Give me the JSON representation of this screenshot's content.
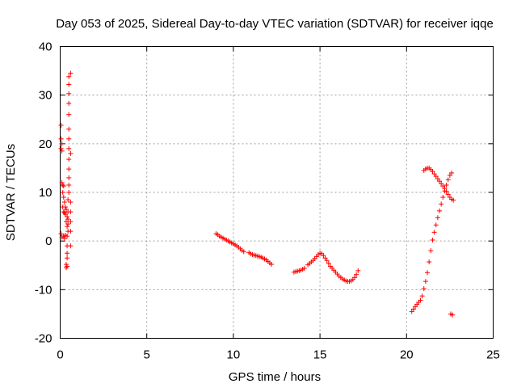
{
  "chart_data": {
    "type": "scatter",
    "title": "Day 053 of 2025, Sidereal Day-to-day VTEC variation (SDTVAR) for receiver iqqe",
    "xlabel": "GPS time / hours",
    "ylabel": "SDTVAR / TECUs",
    "xlim": [
      0,
      25
    ],
    "ylim": [
      -20,
      40
    ],
    "xticks": [
      0,
      5,
      10,
      15,
      20,
      25
    ],
    "yticks": [
      -20,
      -10,
      0,
      10,
      20,
      30,
      40
    ],
    "xtick_labels": [
      "0",
      "5",
      "10",
      "15",
      "20",
      "25"
    ],
    "ytick_labels": [
      "-20",
      "-10",
      "0",
      "10",
      "20",
      "30",
      "40"
    ],
    "grid": true,
    "marker": "+",
    "color": "#ff0000",
    "series": [
      {
        "points": [
          [
            0.05,
            1.5
          ],
          [
            0.05,
            19.0
          ],
          [
            0.05,
            21.0
          ],
          [
            0.05,
            23.8
          ],
          [
            0.1,
            12.0
          ],
          [
            0.1,
            20.0
          ],
          [
            0.1,
            18.5
          ],
          [
            0.1,
            0.8
          ],
          [
            0.15,
            11.5
          ],
          [
            0.15,
            10.0
          ],
          [
            0.15,
            7.0
          ],
          [
            0.2,
            11.3
          ],
          [
            0.2,
            9.0
          ],
          [
            0.2,
            6.0
          ],
          [
            0.2,
            1.0
          ],
          [
            0.25,
            8.0
          ],
          [
            0.25,
            5.8
          ],
          [
            0.25,
            0.5
          ],
          [
            0.3,
            7.0
          ],
          [
            0.3,
            5.5
          ],
          [
            0.3,
            1.2
          ],
          [
            0.35,
            6.5
          ],
          [
            0.35,
            4.0
          ],
          [
            0.35,
            -4.8
          ],
          [
            0.35,
            -5.5
          ],
          [
            0.4,
            5.0
          ],
          [
            0.4,
            3.0
          ],
          [
            0.4,
            1.0
          ],
          [
            0.4,
            -1.0
          ],
          [
            0.4,
            -2.5
          ],
          [
            0.4,
            -3.5
          ],
          [
            0.4,
            -5.2
          ],
          [
            0.45,
            8.5
          ],
          [
            0.45,
            6.0
          ],
          [
            0.45,
            4.5
          ],
          [
            0.45,
            3.5
          ],
          [
            0.45,
            2.0
          ],
          [
            0.5,
            10.0
          ],
          [
            0.5,
            11.5
          ],
          [
            0.5,
            13.0
          ],
          [
            0.5,
            14.8
          ],
          [
            0.5,
            16.8
          ],
          [
            0.5,
            19.0
          ],
          [
            0.5,
            21.0
          ],
          [
            0.5,
            23.0
          ],
          [
            0.5,
            26.0
          ],
          [
            0.5,
            28.3
          ],
          [
            0.5,
            30.3
          ],
          [
            0.5,
            32.2
          ],
          [
            0.5,
            33.8
          ],
          [
            0.6,
            34.5
          ],
          [
            0.6,
            18.0
          ],
          [
            0.6,
            8.0
          ],
          [
            0.6,
            6.0
          ],
          [
            0.6,
            4.0
          ],
          [
            0.6,
            2.0
          ],
          [
            0.6,
            -1.0
          ],
          [
            9.0,
            1.5
          ],
          [
            9.1,
            1.3
          ],
          [
            9.2,
            1.0
          ],
          [
            9.3,
            0.8
          ],
          [
            9.4,
            0.6
          ],
          [
            9.5,
            0.4
          ],
          [
            9.6,
            0.2
          ],
          [
            9.7,
            0.0
          ],
          [
            9.8,
            -0.2
          ],
          [
            9.9,
            -0.4
          ],
          [
            10.0,
            -0.6
          ],
          [
            10.1,
            -0.8
          ],
          [
            10.2,
            -1.0
          ],
          [
            10.3,
            -1.3
          ],
          [
            10.4,
            -1.6
          ],
          [
            10.5,
            -1.9
          ],
          [
            10.6,
            -2.2
          ],
          [
            10.9,
            -2.4
          ],
          [
            11.0,
            -2.6
          ],
          [
            11.1,
            -2.8
          ],
          [
            11.2,
            -2.9
          ],
          [
            11.3,
            -3.0
          ],
          [
            11.4,
            -3.1
          ],
          [
            11.5,
            -3.2
          ],
          [
            11.6,
            -3.3
          ],
          [
            11.7,
            -3.5
          ],
          [
            11.8,
            -3.7
          ],
          [
            11.9,
            -3.9
          ],
          [
            12.0,
            -4.2
          ],
          [
            12.1,
            -4.5
          ],
          [
            12.2,
            -4.8
          ],
          [
            13.5,
            -6.4
          ],
          [
            13.6,
            -6.3
          ],
          [
            13.7,
            -6.2
          ],
          [
            13.8,
            -6.1
          ],
          [
            13.9,
            -6.0
          ],
          [
            14.0,
            -5.8
          ],
          [
            14.1,
            -5.6
          ],
          [
            14.3,
            -4.9
          ],
          [
            14.4,
            -4.6
          ],
          [
            14.5,
            -4.3
          ],
          [
            14.6,
            -4.0
          ],
          [
            14.7,
            -3.6
          ],
          [
            14.8,
            -3.2
          ],
          [
            14.9,
            -2.8
          ],
          [
            15.0,
            -2.5
          ],
          [
            15.1,
            -2.6
          ],
          [
            15.2,
            -3.0
          ],
          [
            15.3,
            -3.5
          ],
          [
            15.4,
            -4.0
          ],
          [
            15.5,
            -4.6
          ],
          [
            15.6,
            -5.2
          ],
          [
            15.7,
            -5.6
          ],
          [
            15.8,
            -6.0
          ],
          [
            15.9,
            -6.4
          ],
          [
            16.0,
            -6.8
          ],
          [
            16.1,
            -7.2
          ],
          [
            16.2,
            -7.5
          ],
          [
            16.3,
            -7.8
          ],
          [
            16.4,
            -8.0
          ],
          [
            16.5,
            -8.2
          ],
          [
            16.6,
            -8.3
          ],
          [
            16.7,
            -8.3
          ],
          [
            16.8,
            -8.2
          ],
          [
            16.9,
            -7.9
          ],
          [
            17.0,
            -7.5
          ],
          [
            17.1,
            -6.9
          ],
          [
            17.2,
            -6.1
          ],
          [
            20.3,
            -14.5
          ],
          [
            20.4,
            -14.0
          ],
          [
            20.5,
            -13.5
          ],
          [
            20.6,
            -13.0
          ],
          [
            20.7,
            -12.6
          ],
          [
            20.8,
            -12.2
          ],
          [
            20.9,
            -11.3
          ],
          [
            21.0,
            -9.8
          ],
          [
            21.1,
            -8.3
          ],
          [
            21.2,
            -6.5
          ],
          [
            21.3,
            -4.3
          ],
          [
            21.4,
            -2.0
          ],
          [
            21.5,
            0.2
          ],
          [
            21.6,
            1.8
          ],
          [
            21.7,
            3.3
          ],
          [
            21.8,
            4.8
          ],
          [
            21.9,
            6.2
          ],
          [
            22.0,
            7.6
          ],
          [
            22.1,
            9.0
          ],
          [
            22.2,
            10.3
          ],
          [
            22.3,
            11.5
          ],
          [
            22.4,
            12.6
          ],
          [
            22.5,
            13.5
          ],
          [
            22.6,
            14.0
          ],
          [
            21.0,
            14.5
          ],
          [
            21.1,
            14.8
          ],
          [
            21.2,
            15.0
          ],
          [
            21.3,
            15.0
          ],
          [
            21.4,
            14.7
          ],
          [
            21.5,
            14.3
          ],
          [
            21.6,
            13.8
          ],
          [
            21.7,
            13.3
          ],
          [
            21.8,
            12.8
          ],
          [
            21.9,
            12.3
          ],
          [
            22.0,
            11.8
          ],
          [
            22.1,
            11.3
          ],
          [
            22.2,
            10.8
          ],
          [
            22.3,
            10.2
          ],
          [
            22.4,
            9.6
          ],
          [
            22.5,
            9.0
          ],
          [
            22.6,
            8.6
          ],
          [
            22.7,
            8.4
          ],
          [
            22.55,
            -15.0
          ],
          [
            22.65,
            -15.2
          ]
        ]
      }
    ]
  }
}
